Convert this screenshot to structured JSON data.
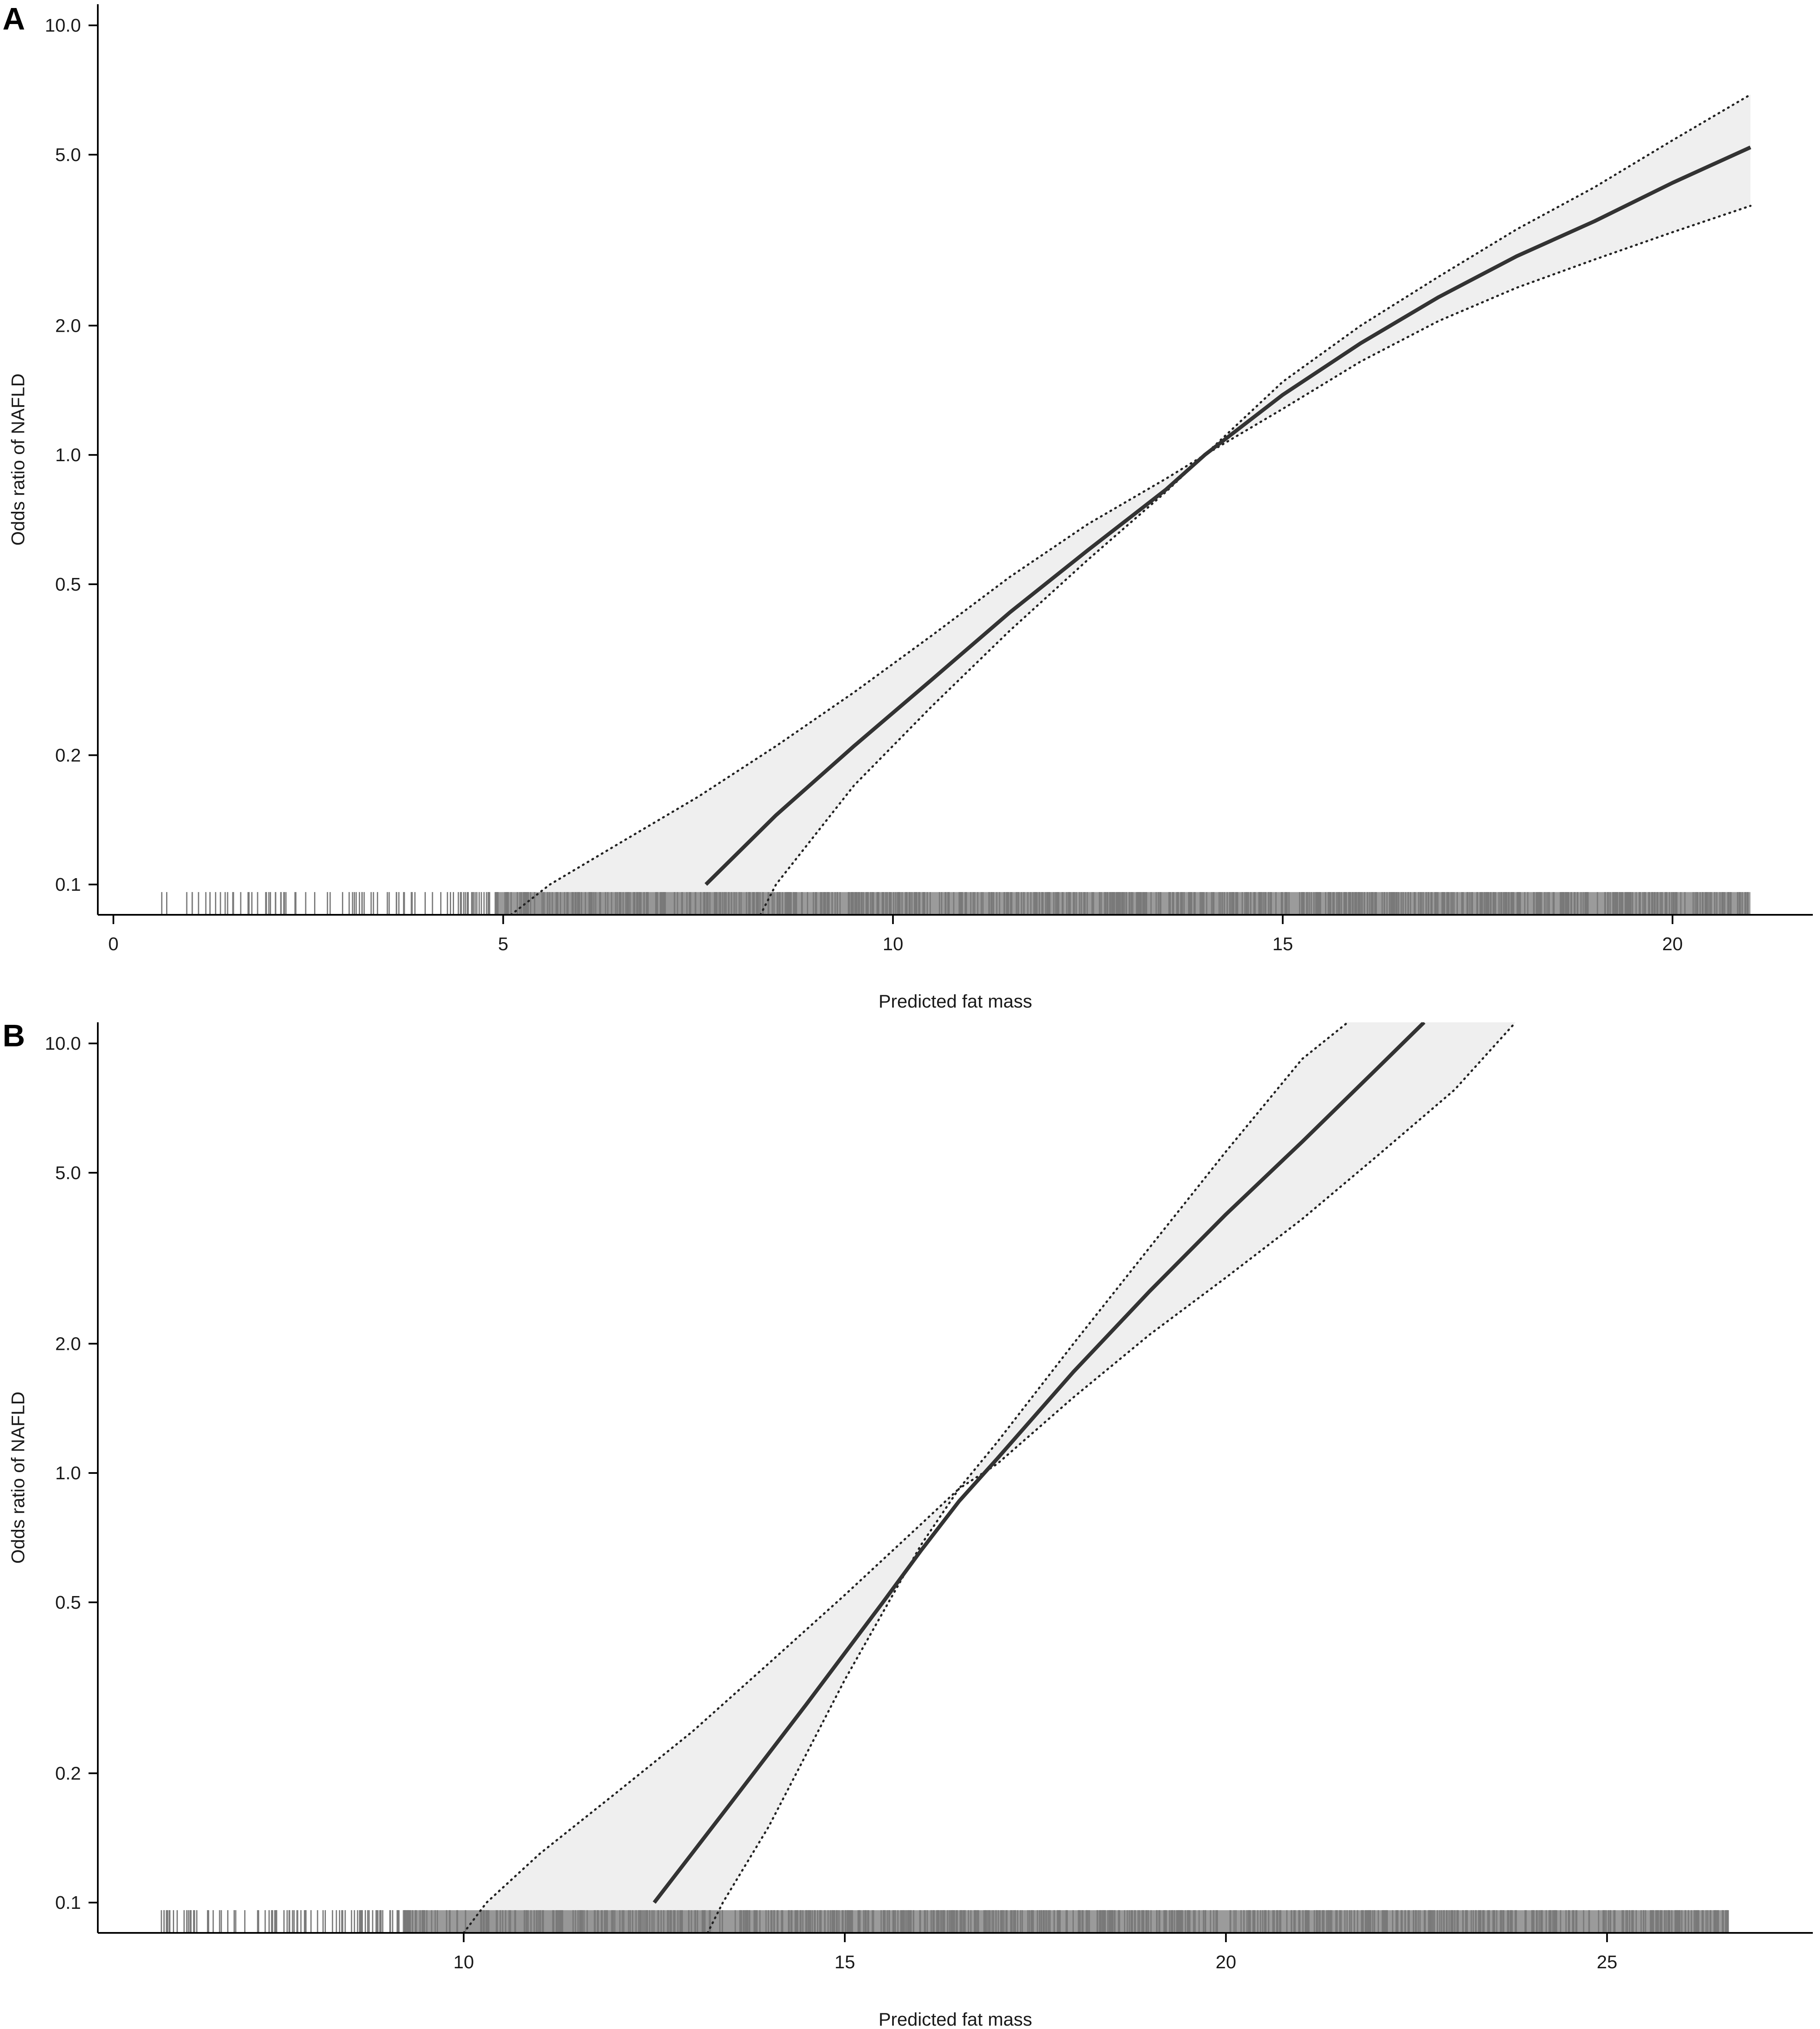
{
  "chart_data": [
    {
      "panel": "A",
      "type": "line",
      "xlabel": "Predicted fat mass",
      "ylabel": "Odds ratio of NAFLD",
      "y_scale": "log",
      "xlim": [
        -0.2,
        21.8
      ],
      "ylim": [
        0.085,
        11.2
      ],
      "x_ticks": [
        0,
        5,
        10,
        15,
        20
      ],
      "x_tick_labels": [
        "0",
        "5",
        "10",
        "15",
        "20"
      ],
      "y_ticks": [
        0.1,
        0.2,
        0.5,
        1.0,
        2.0,
        5.0,
        10.0
      ],
      "y_tick_labels": [
        "0.1",
        "0.2",
        "0.5",
        "1.0",
        "2.0",
        "5.0",
        "10.0"
      ],
      "grid": false,
      "band_color": "#efefef",
      "line_color": "#333333",
      "series": [
        {
          "role": "estimate",
          "style": "solid",
          "x": [
            7.6,
            8.5,
            9.5,
            10.5,
            11.5,
            12.5,
            13.5,
            14.0,
            15.0,
            16.0,
            17.0,
            18.0,
            19.0,
            20.0,
            21.0
          ],
          "y": [
            0.1,
            0.145,
            0.21,
            0.3,
            0.43,
            0.6,
            0.83,
            1.0,
            1.38,
            1.82,
            2.33,
            2.9,
            3.5,
            4.3,
            5.2
          ]
        },
        {
          "role": "upper_ci",
          "style": "dotted",
          "x": [
            5.1,
            5.6,
            6.5,
            7.5,
            8.5,
            9.5,
            10.5,
            11.5,
            12.5,
            13.5,
            14.0,
            15.0,
            16.0,
            17.0,
            18.0,
            19.0,
            20.0,
            21.0
          ],
          "y": [
            0.085,
            0.1,
            0.125,
            0.16,
            0.21,
            0.28,
            0.38,
            0.52,
            0.69,
            0.88,
            1.0,
            1.48,
            2.0,
            2.6,
            3.35,
            4.2,
            5.4,
            6.9
          ],
          "band_x_end": 21.0
        },
        {
          "role": "lower_ci",
          "style": "dotted",
          "x": [
            8.3,
            8.5,
            9.5,
            10.5,
            11.5,
            12.5,
            13.5,
            14.0,
            15.0,
            16.0,
            17.0,
            18.0,
            19.0,
            20.0,
            21.0
          ],
          "y": [
            0.085,
            0.1,
            0.17,
            0.26,
            0.39,
            0.57,
            0.82,
            1.0,
            1.28,
            1.65,
            2.05,
            2.45,
            2.85,
            3.3,
            3.8
          ]
        }
      ],
      "rug": {
        "x_min": 0.6,
        "x_max": 21.0,
        "dense_from": 4.3,
        "count": 900,
        "y_bottom": 0.085,
        "y_top": 0.096,
        "color": "#7a7a7a"
      }
    },
    {
      "panel": "B",
      "type": "line",
      "xlabel": "Predicted fat mass",
      "ylabel": "Odds ratio of NAFLD",
      "y_scale": "log",
      "xlim": [
        5.2,
        27.7
      ],
      "ylim": [
        0.085,
        11.2
      ],
      "x_ticks": [
        10,
        15,
        20,
        25
      ],
      "x_tick_labels": [
        "10",
        "15",
        "20",
        "25"
      ],
      "y_ticks": [
        0.1,
        0.2,
        0.5,
        1.0,
        2.0,
        5.0,
        10.0
      ],
      "y_tick_labels": [
        "0.1",
        "0.2",
        "0.5",
        "1.0",
        "2.0",
        "5.0",
        "10.0"
      ],
      "grid": false,
      "band_color": "#efefef",
      "line_color": "#333333",
      "series": [
        {
          "role": "estimate",
          "style": "solid",
          "x": [
            12.5,
            13.5,
            14.5,
            15.5,
            16.0,
            16.5,
            17.0,
            18.0,
            19.0,
            20.0,
            21.0,
            22.0,
            22.6
          ],
          "y": [
            0.1,
            0.17,
            0.29,
            0.5,
            0.66,
            0.86,
            1.08,
            1.72,
            2.65,
            4.0,
            5.9,
            8.8,
            11.2
          ]
        },
        {
          "role": "upper_ci",
          "style": "dotted",
          "x": [
            10.0,
            10.3,
            11.0,
            12.0,
            13.0,
            14.0,
            15.0,
            16.0,
            16.5,
            17.0,
            18.0,
            19.0,
            20.0,
            21.0,
            21.6
          ],
          "y": [
            0.085,
            0.1,
            0.13,
            0.18,
            0.25,
            0.36,
            0.52,
            0.76,
            0.92,
            1.18,
            2.0,
            3.35,
            5.6,
            9.2,
            11.2
          ]
        },
        {
          "role": "lower_ci",
          "style": "dotted",
          "x": [
            13.2,
            13.4,
            14.0,
            15.0,
            16.0,
            16.5,
            17.0,
            18.0,
            19.0,
            20.0,
            21.0,
            22.0,
            23.0,
            23.8
          ],
          "y": [
            0.085,
            0.1,
            0.15,
            0.33,
            0.68,
            0.92,
            1.05,
            1.5,
            2.1,
            2.85,
            3.9,
            5.5,
            7.8,
            11.2
          ]
        }
      ],
      "rug": {
        "x_min": 6.0,
        "x_max": 26.6,
        "dense_from": 8.6,
        "count": 900,
        "y_bottom": 0.085,
        "y_top": 0.096,
        "color": "#7a7a7a"
      }
    }
  ]
}
